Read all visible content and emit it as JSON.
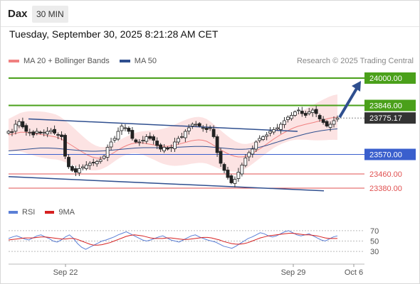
{
  "header": {
    "symbol": "Dax",
    "timeframe": "30 MIN",
    "timestamp": "Tuesday, September 30, 2025 8:21:28 AM CET"
  },
  "legend": {
    "ma20_label": "MA 20 + Bollinger Bands",
    "ma50_label": "MA 50",
    "attribution": "Research © 2025 Trading Central",
    "colors": {
      "ma20": "#f08080",
      "ma50": "#2f4f8f",
      "bands_fill": "#fbdada"
    }
  },
  "rsi_legend": {
    "rsi_label": "RSI",
    "ma_label": "9MA",
    "colors": {
      "rsi": "#5b7fd6",
      "ma": "#d62020"
    }
  },
  "chart_data": [
    {
      "type": "candlestick",
      "title": "",
      "ylim": [
        23320,
        24060
      ],
      "x_ticks": [
        "Sep 22",
        "Sep 29",
        "Oct 6"
      ],
      "levels": [
        {
          "value": 24000,
          "label": "24000.00",
          "color": "#4aa01a",
          "kind": "target"
        },
        {
          "value": 23846,
          "label": "23846.00",
          "color": "#4aa01a",
          "kind": "resistance"
        },
        {
          "value": 23775.17,
          "label": "23775.17",
          "color": "#333333",
          "kind": "last-price"
        },
        {
          "value": 23570,
          "label": "23570.00",
          "color": "#3a5fcd",
          "kind": "pivot"
        },
        {
          "value": 23460,
          "label": "23460.00",
          "color": "#e05050",
          "kind": "support"
        },
        {
          "value": 23380,
          "label": "23380.00",
          "color": "#e05050",
          "kind": "support"
        }
      ],
      "channel": {
        "upper": [
          [
            0,
            23770
          ],
          [
            1,
            23700
          ]
        ],
        "lower": [
          [
            0,
            23445
          ],
          [
            1,
            23365
          ]
        ]
      },
      "scenario_arrow": {
        "from": 23775,
        "to": 24000
      },
      "closes": [
        23700,
        23695,
        23740,
        23755,
        23725,
        23700,
        23695,
        23680,
        23700,
        23690,
        23695,
        23700,
        23705,
        23690,
        23680,
        23670,
        23560,
        23500,
        23480,
        23470,
        23490,
        23500,
        23510,
        23520,
        23525,
        23530,
        23540,
        23560,
        23610,
        23640,
        23660,
        23700,
        23730,
        23720,
        23700,
        23660,
        23640,
        23640,
        23650,
        23670,
        23660,
        23650,
        23620,
        23600,
        23610,
        23600,
        23610,
        23640,
        23660,
        23670,
        23700,
        23720,
        23740,
        23740,
        23730,
        23720,
        23710,
        23720,
        23670,
        23580,
        23520,
        23480,
        23440,
        23410,
        23430,
        23470,
        23510,
        23550,
        23580,
        23600,
        23640,
        23660,
        23670,
        23680,
        23700,
        23710,
        23720,
        23740,
        23760,
        23780,
        23790,
        23810,
        23820,
        23800,
        23790,
        23810,
        23820,
        23800,
        23770,
        23750,
        23730,
        23740,
        23760,
        23775.17
      ],
      "ma20": [
        23680,
        23685,
        23690,
        23695,
        23695,
        23693,
        23690,
        23686,
        23683,
        23680,
        23676,
        23672,
        23668,
        23660,
        23648,
        23634,
        23620,
        23606,
        23592,
        23578,
        23566,
        23556,
        23550,
        23548,
        23552,
        23560,
        23572,
        23586,
        23600,
        23612,
        23622,
        23630,
        23634,
        23636,
        23634,
        23630,
        23626,
        23622,
        23618,
        23616,
        23616,
        23618,
        23622,
        23628,
        23634,
        23640,
        23646,
        23650,
        23652,
        23650,
        23644,
        23632,
        23618,
        23604,
        23590,
        23578,
        23568,
        23560,
        23556,
        23556,
        23560,
        23570,
        23582,
        23596,
        23610,
        23626,
        23642,
        23658,
        23672,
        23686,
        23698,
        23710,
        23720,
        23728,
        23734,
        23740,
        23745,
        23750,
        23756,
        23762,
        23768,
        23774,
        23778,
        23780
      ],
      "ma50": [
        23590,
        23592,
        23594,
        23596,
        23598,
        23600,
        23602,
        23604,
        23606,
        23606,
        23606,
        23605,
        23604,
        23602,
        23600,
        23598,
        23596,
        23594,
        23592,
        23590,
        23589,
        23588,
        23588,
        23589,
        23590,
        23592,
        23594,
        23596,
        23598,
        23600,
        23602,
        23604,
        23606,
        23607,
        23608,
        23608,
        23608,
        23608,
        23608,
        23608,
        23608,
        23609,
        23610,
        23611,
        23612,
        23613,
        23614,
        23615,
        23615,
        23615,
        23614,
        23612,
        23610,
        23608,
        23606,
        23604,
        23602,
        23600,
        23599,
        23599,
        23600,
        23602,
        23605,
        23609,
        23614,
        23620,
        23627,
        23634,
        23641,
        23648,
        23655,
        23662,
        23668,
        23674,
        23680,
        23686,
        23691,
        23696,
        23700,
        23704,
        23707,
        23710,
        23712,
        23714
      ]
    },
    {
      "type": "line",
      "title": "",
      "ylim": [
        15,
        85
      ],
      "y_ticks": [
        30,
        50,
        70
      ],
      "series": [
        {
          "name": "RSI",
          "values": [
            55,
            58,
            60,
            57,
            54,
            52,
            56,
            60,
            62,
            58,
            55,
            50,
            48,
            52,
            58,
            62,
            55,
            45,
            38,
            34,
            38,
            42,
            46,
            50,
            52,
            55,
            58,
            62,
            65,
            68,
            64,
            60,
            56,
            52,
            50,
            52,
            55,
            58,
            60,
            56,
            52,
            50,
            48,
            52,
            56,
            60,
            62,
            58,
            55,
            52,
            50,
            48,
            44,
            40,
            38,
            36,
            40,
            45,
            50,
            55,
            58,
            62,
            66,
            64,
            60,
            58,
            60,
            64,
            68,
            70,
            66,
            62,
            60,
            62,
            64,
            60,
            56,
            52,
            50,
            54,
            58,
            60
          ]
        },
        {
          "name": "9MA",
          "values": [
            52,
            53,
            54,
            55,
            56,
            56,
            56,
            57,
            58,
            58,
            57,
            56,
            55,
            54,
            54,
            55,
            55,
            53,
            50,
            47,
            44,
            42,
            42,
            43,
            45,
            47,
            50,
            53,
            56,
            59,
            61,
            62,
            61,
            60,
            58,
            56,
            55,
            55,
            55,
            56,
            56,
            55,
            54,
            53,
            53,
            54,
            55,
            56,
            57,
            57,
            56,
            54,
            52,
            49,
            47,
            45,
            44,
            44,
            45,
            47,
            50,
            53,
            56,
            58,
            60,
            61,
            62,
            63,
            64,
            65,
            65,
            64,
            63,
            62,
            62,
            61,
            60,
            58,
            56,
            55,
            55,
            55
          ]
        }
      ]
    }
  ]
}
